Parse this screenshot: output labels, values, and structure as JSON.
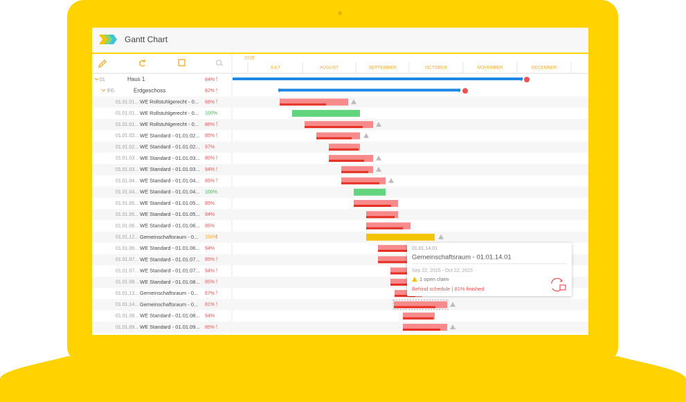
{
  "header": {
    "title": "Gantt Chart"
  },
  "timeline": {
    "year": "2015",
    "months": [
      "JULY",
      "AUGUST",
      "SEPTEMBER",
      "OCTOBER",
      "NOVEMBER",
      "DECEMBER"
    ]
  },
  "groups": [
    {
      "id": "01",
      "name": "Haus 1",
      "percent": "84%",
      "flag": "!"
    },
    {
      "id": "EG",
      "name": "Erdgeschoss",
      "percent": "82%",
      "flag": "!"
    }
  ],
  "tasks": [
    {
      "id": "01.01.01...",
      "name": "WE Rollstuhlgerecht - 0...",
      "percent": "68%",
      "flag": "!"
    },
    {
      "id": "01.01.01...",
      "name": "WE Rollstuhlgerecht - 0...",
      "percent": "100%"
    },
    {
      "id": "01.01.01...",
      "name": "WE Rollstuhlgerecht - 0...",
      "percent": "86%",
      "flag": "!"
    },
    {
      "id": "01.01.02...",
      "name": "WE Standard - 01.01.02...",
      "percent": "85%",
      "flag": "!"
    },
    {
      "id": "01.01.02...",
      "name": "WE Standard - 01.01.02...",
      "percent": "97%"
    },
    {
      "id": "01.01.03...",
      "name": "WE Standard - 01.01.03...",
      "percent": "80%",
      "flag": "!"
    },
    {
      "id": "01.01.03...",
      "name": "WE Standard - 01.01.03...",
      "percent": "94%",
      "flag": "!"
    },
    {
      "id": "01.01.04...",
      "name": "WE Standard - 01.01.04...",
      "percent": "85%",
      "flag": "!"
    },
    {
      "id": "01.01.04...",
      "name": "WE Standard - 01.01.04...",
      "percent": "100%"
    },
    {
      "id": "01.01.05...",
      "name": "WE Standard - 01.01.05...",
      "percent": "85%"
    },
    {
      "id": "01.01.05...",
      "name": "WE Standard - 01.01.05...",
      "percent": "94%"
    },
    {
      "id": "01.01.06...",
      "name": "WE Standard - 01.01.06...",
      "percent": "85%"
    },
    {
      "id": "01.01.12...",
      "name": "Gemeinschaftsraum - 0...",
      "percent": "100%",
      "flag": "!"
    },
    {
      "id": "01.01.06...",
      "name": "WE Standard - 01.01.06...",
      "percent": "94%"
    },
    {
      "id": "01.01.07...",
      "name": "WE Standard - 01.01.07...",
      "percent": "85%",
      "flag": "!"
    },
    {
      "id": "01.01.07...",
      "name": "WE Standard - 01.01.07...",
      "percent": "94%",
      "flag": "!"
    },
    {
      "id": "01.01.08...",
      "name": "WE Standard - 01.01.08...",
      "percent": "85%",
      "flag": "!"
    },
    {
      "id": "01.01.13...",
      "name": "Gemeinschaftsraum - 0...",
      "percent": "67%",
      "flag": "!"
    },
    {
      "id": "01.01.14...",
      "name": "Gemeinschaftsraum - 0...",
      "percent": "81%",
      "flag": "!"
    },
    {
      "id": "01.01.08...",
      "name": "WE Standard - 01.01.08...",
      "percent": "94%"
    },
    {
      "id": "01.01.09...",
      "name": "WE Standard - 01.01.09...",
      "percent": "85%",
      "flag": "!"
    }
  ],
  "tooltip": {
    "id": "01.01.14.01",
    "name": "Gemeinschaftsraum - 01.01.14.01",
    "dates": "Sep 22, 2015 - Oct 22, 2015",
    "claims": "1 open claim",
    "status": "Behind schedule | 81% finished"
  }
}
